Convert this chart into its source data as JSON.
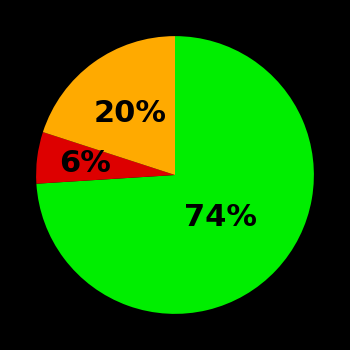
{
  "slices": [
    74,
    6,
    20
  ],
  "colors": [
    "#00ee00",
    "#dd0000",
    "#ffaa00"
  ],
  "labels": [
    "74%",
    "6%",
    "20%"
  ],
  "background_color": "#000000",
  "startangle": 90,
  "label_radii": [
    0.45,
    0.65,
    0.55
  ],
  "label_fontsize": 22,
  "label_fontweight": "bold"
}
